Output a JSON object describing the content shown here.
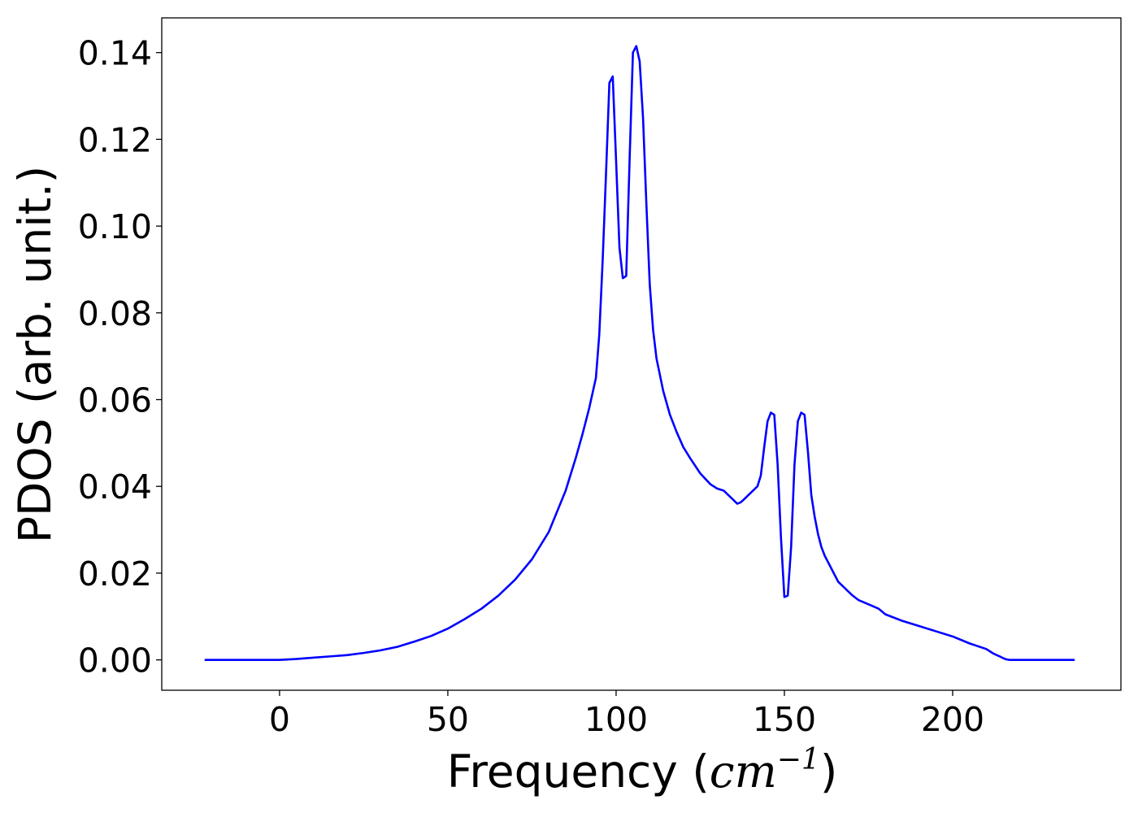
{
  "chart_data": {
    "type": "line",
    "title": "",
    "xlabel": {
      "prefix": "Frequency (",
      "unit_base": "cm",
      "unit_exponent": "−1",
      "suffix": ")"
    },
    "ylabel": "PDOS (arb. unit.)",
    "xlim": [
      -35,
      250
    ],
    "ylim": [
      -0.007,
      0.148
    ],
    "xticks": [
      0,
      50,
      100,
      150,
      200
    ],
    "xtick_labels": [
      "0",
      "50",
      "100",
      "150",
      "200"
    ],
    "yticks": [
      0.0,
      0.02,
      0.04,
      0.06,
      0.08,
      0.1,
      0.12,
      0.14
    ],
    "ytick_labels": [
      "0.00",
      "0.02",
      "0.04",
      "0.06",
      "0.08",
      "0.10",
      "0.12",
      "0.14"
    ],
    "grid": false,
    "legend": "none",
    "series": [
      {
        "color": "#0000ff",
        "x": [
          -22,
          0,
          5,
          10,
          15,
          20,
          25,
          30,
          35,
          40,
          45,
          50,
          55,
          60,
          65,
          70,
          75,
          80,
          85,
          88,
          90,
          92,
          94,
          95,
          96,
          97,
          98,
          99,
          100,
          101,
          102,
          103,
          104,
          105,
          106,
          107,
          108,
          109,
          110,
          111,
          112,
          114,
          116,
          118,
          120,
          122,
          125,
          128,
          130,
          132,
          134,
          136,
          137,
          138,
          140,
          142,
          143,
          144,
          145,
          146,
          147,
          148,
          149,
          150,
          151,
          152,
          153,
          154,
          155,
          156,
          157,
          158,
          159,
          160,
          161,
          162,
          163,
          164,
          165,
          166,
          168,
          170,
          172,
          175,
          178,
          180,
          185,
          190,
          195,
          200,
          205,
          210,
          212,
          214,
          215,
          216,
          217,
          218,
          220,
          225,
          236
        ],
        "y": [
          0.0,
          0.0,
          0.0002,
          0.0005,
          0.0008,
          0.0011,
          0.0016,
          0.0022,
          0.003,
          0.0042,
          0.0055,
          0.0072,
          0.0094,
          0.0118,
          0.0148,
          0.0185,
          0.0232,
          0.0295,
          0.039,
          0.0465,
          0.052,
          0.058,
          0.065,
          0.075,
          0.092,
          0.112,
          0.133,
          0.1345,
          0.115,
          0.095,
          0.088,
          0.0885,
          0.115,
          0.14,
          0.1415,
          0.138,
          0.125,
          0.105,
          0.0865,
          0.076,
          0.0695,
          0.062,
          0.0565,
          0.0525,
          0.049,
          0.0465,
          0.043,
          0.0405,
          0.0395,
          0.039,
          0.0375,
          0.036,
          0.0363,
          0.037,
          0.0385,
          0.04,
          0.0425,
          0.049,
          0.055,
          0.057,
          0.0565,
          0.045,
          0.028,
          0.0145,
          0.0148,
          0.026,
          0.045,
          0.055,
          0.057,
          0.0565,
          0.048,
          0.038,
          0.033,
          0.029,
          0.026,
          0.024,
          0.0225,
          0.021,
          0.0195,
          0.018,
          0.0165,
          0.015,
          0.0138,
          0.0128,
          0.0118,
          0.0105,
          0.009,
          0.0078,
          0.0066,
          0.0054,
          0.0038,
          0.0025,
          0.0015,
          0.0008,
          0.0004,
          0.0001,
          0.0,
          0.0,
          0.0,
          0.0,
          0.0
        ]
      }
    ]
  }
}
